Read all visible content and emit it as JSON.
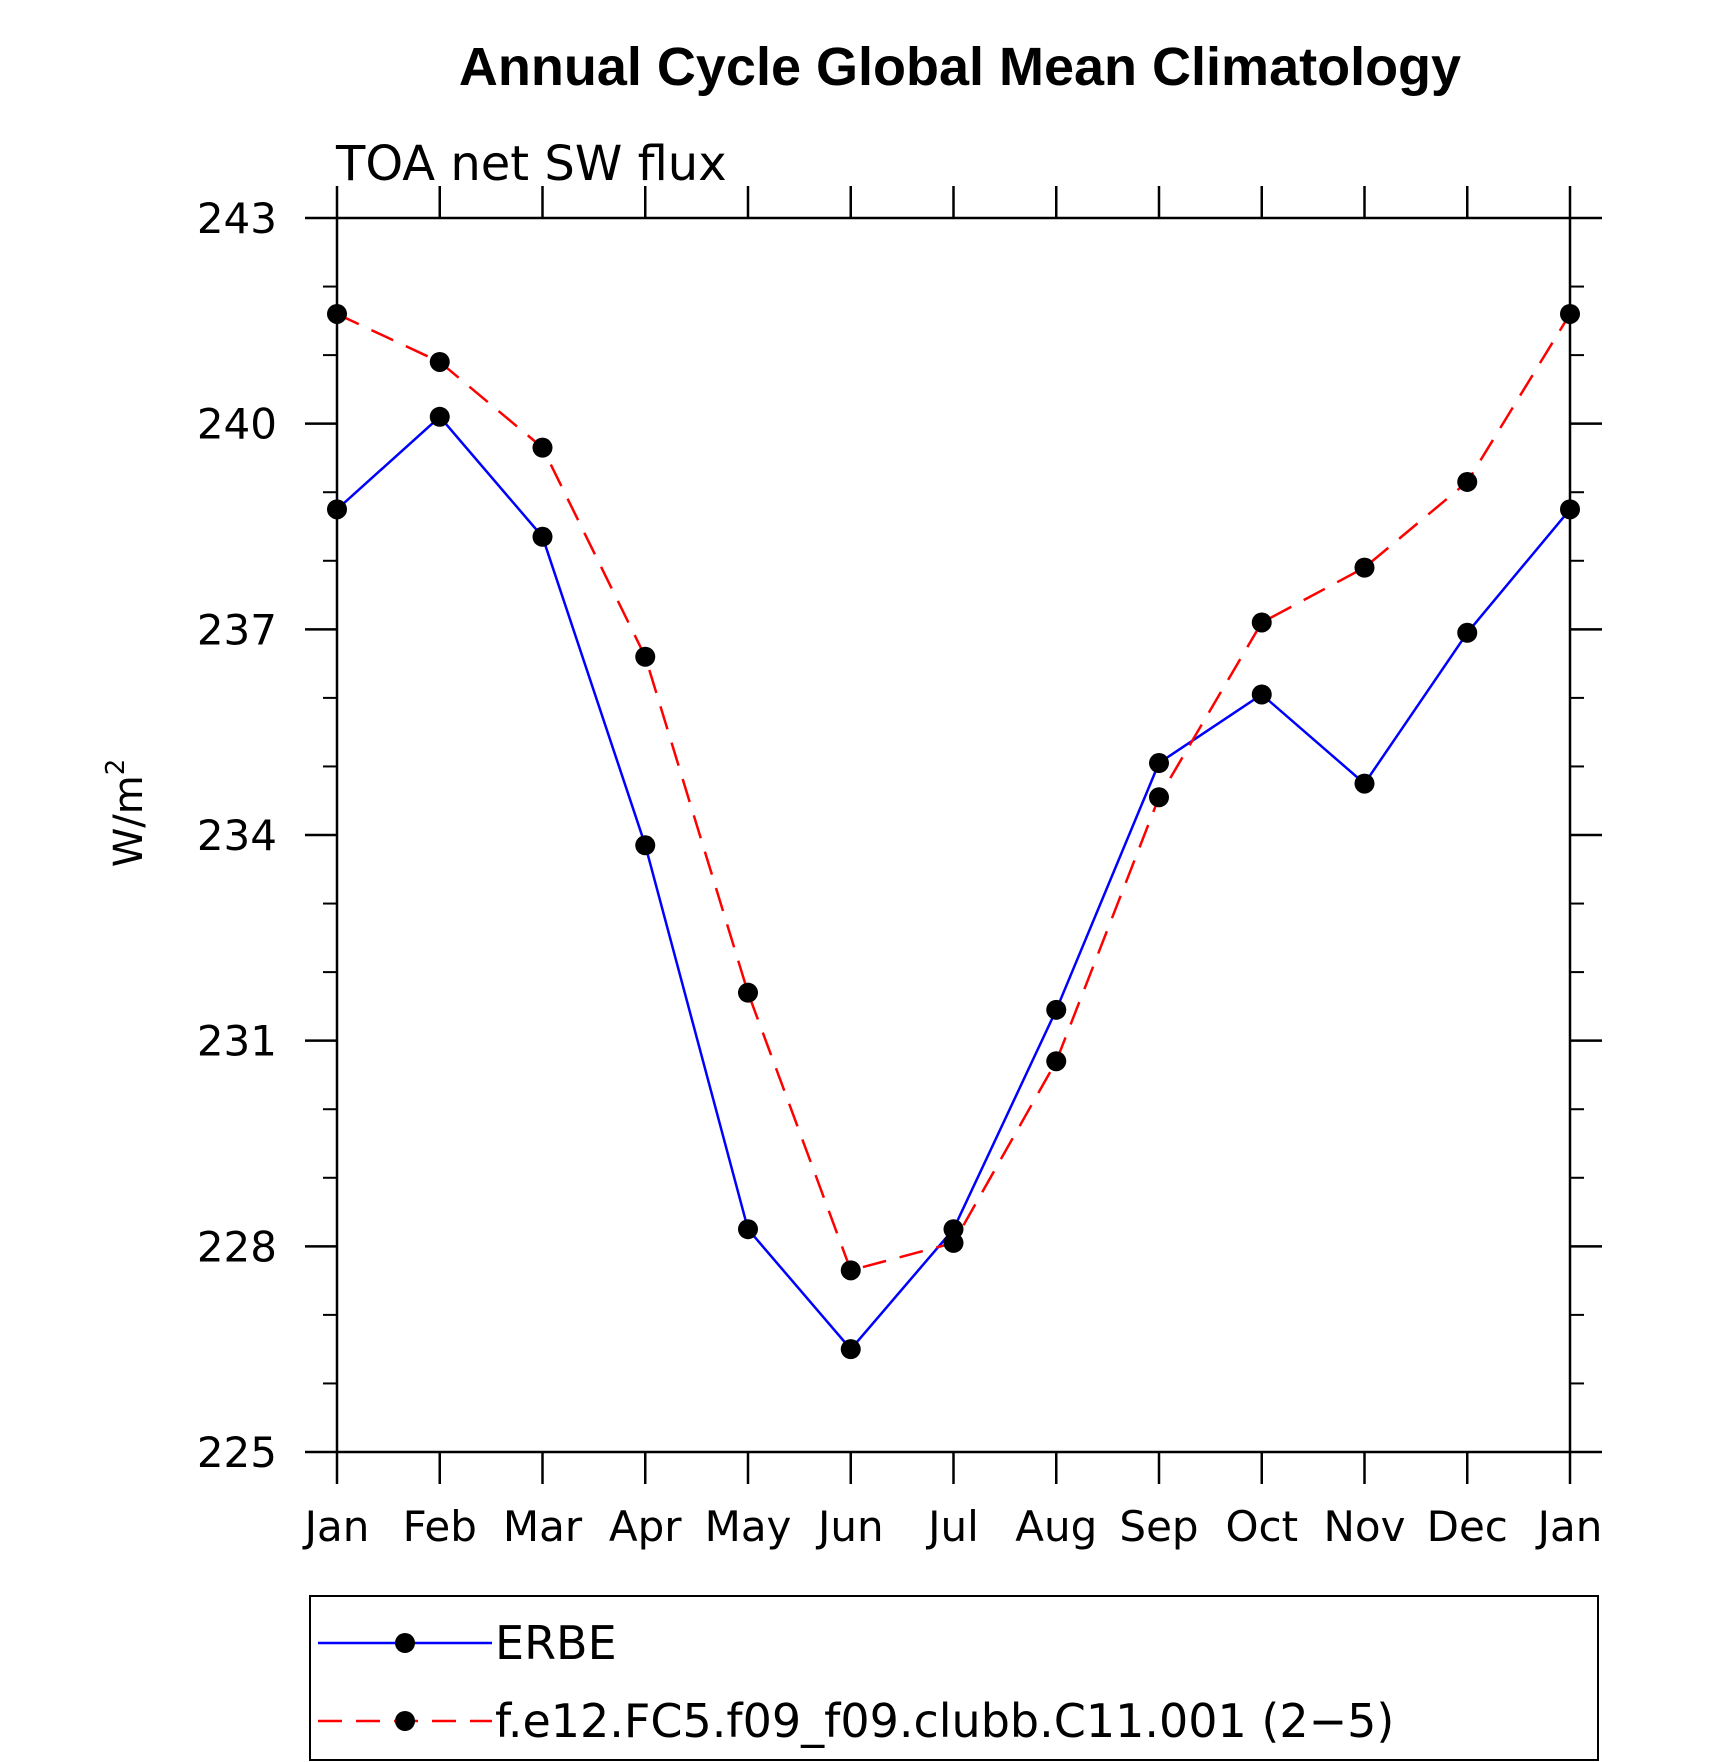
{
  "chart_data": {
    "type": "line",
    "title": "Annual Cycle Global Mean Climatology",
    "subtitle": "TOA net SW flux",
    "ylabel": "W/m",
    "ylabel_sup": "2",
    "xlabel": "",
    "ylim": [
      225,
      243
    ],
    "yticks": [
      225,
      228,
      231,
      234,
      237,
      240,
      243
    ],
    "categories": [
      "Jan",
      "Feb",
      "Mar",
      "Apr",
      "May",
      "Jun",
      "Jul",
      "Aug",
      "Sep",
      "Oct",
      "Nov",
      "Dec",
      "Jan"
    ],
    "grid": false,
    "legend_position": "bottom",
    "series": [
      {
        "name": "ERBE",
        "color": "#0000ff",
        "line_style": "solid",
        "marker": "filled-circle",
        "values": [
          238.75,
          240.1,
          238.35,
          233.85,
          228.25,
          226.5,
          228.25,
          231.45,
          235.05,
          236.05,
          234.75,
          236.95,
          238.75
        ]
      },
      {
        "name": "f.e12.FC5.f09_f09.clubb.C11.001 (2−5)",
        "color": "#ff0000",
        "line_style": "dashed",
        "marker": "filled-circle",
        "values": [
          241.6,
          240.9,
          239.65,
          236.6,
          231.7,
          227.65,
          228.05,
          230.7,
          234.55,
          237.1,
          237.9,
          239.15,
          241.6
        ]
      }
    ]
  }
}
